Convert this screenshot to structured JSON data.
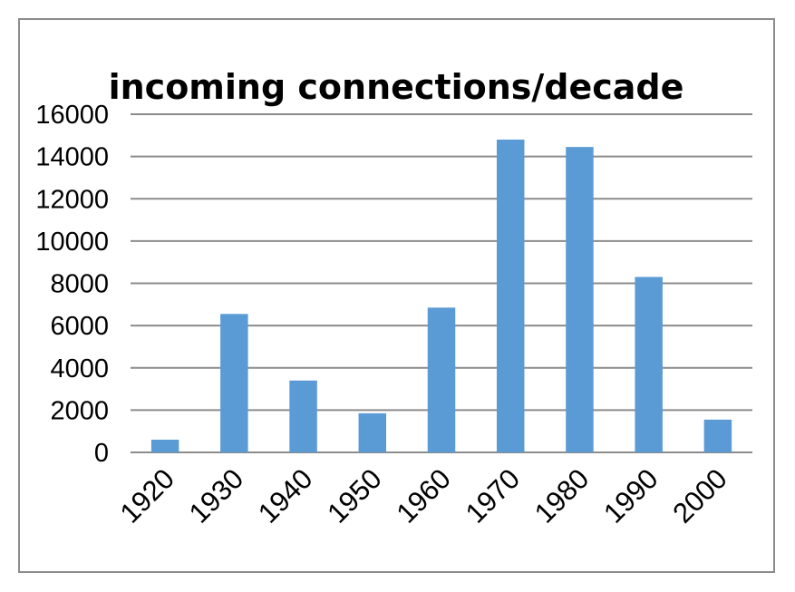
{
  "chart_data": {
    "type": "bar",
    "title": "incoming connections/decade",
    "xlabel": "",
    "ylabel": "",
    "categories": [
      "1920",
      "1930",
      "1940",
      "1950",
      "1960",
      "1970",
      "1980",
      "1990",
      "2000"
    ],
    "values": [
      600,
      6550,
      3400,
      1850,
      6850,
      14800,
      14450,
      8300,
      1550
    ],
    "ylim": [
      0,
      16000
    ],
    "yticks": [
      0,
      2000,
      4000,
      6000,
      8000,
      10000,
      12000,
      14000,
      16000
    ],
    "grid": true,
    "legend": "none",
    "bar_color": "#5b9bd5",
    "grid_color": "#8c8c8c"
  }
}
